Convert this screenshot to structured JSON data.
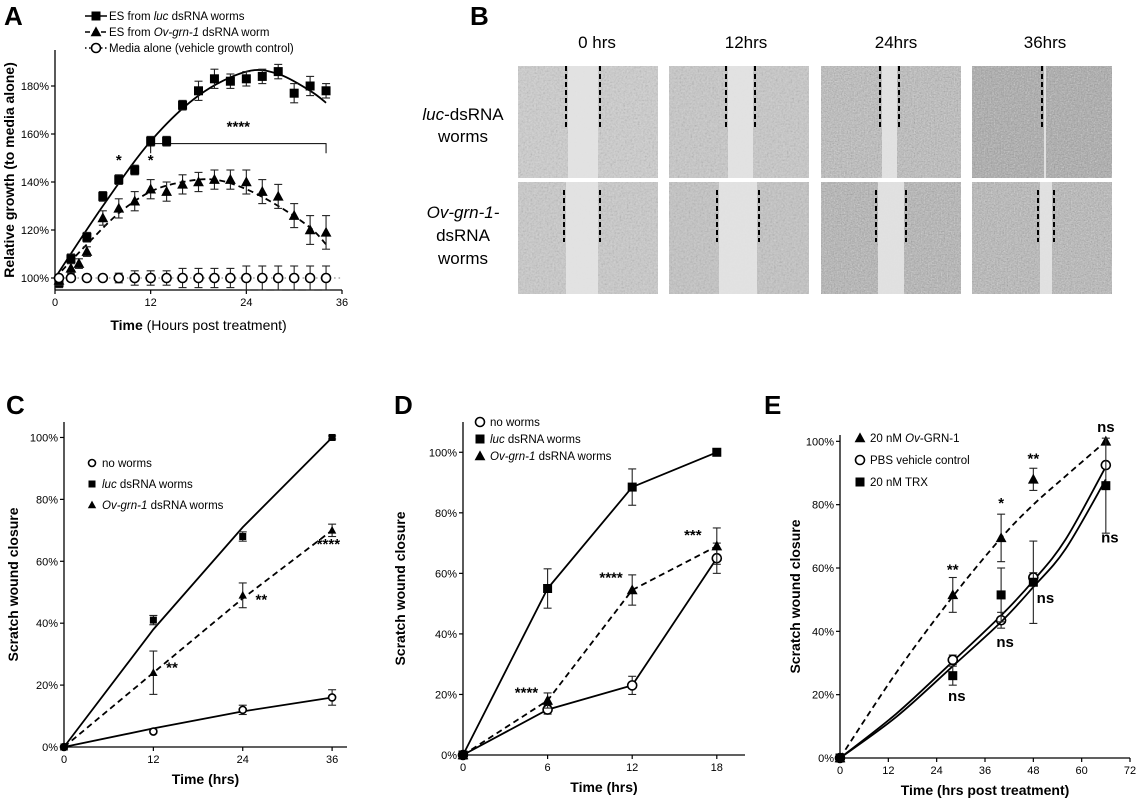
{
  "panels": {
    "A": "A",
    "B": "B",
    "C": "C",
    "D": "D",
    "E": "E"
  },
  "chart_data": [
    {
      "id": "A",
      "type": "line",
      "xlabel": "Time",
      "xlabel_suffix": "(Hours post treatment)",
      "ylabel": "Relative growth (to media alone)",
      "xlim": [
        0,
        36
      ],
      "ylim": [
        95,
        195
      ],
      "x_ticks": [
        0,
        12,
        24,
        36
      ],
      "y_ticks": [
        100,
        120,
        140,
        160,
        180
      ],
      "y_tick_labels": [
        "100%",
        "120%",
        "140%",
        "160%",
        "180%"
      ],
      "legend_position": "top",
      "series": [
        {
          "name": "ES from luc dsRNA worms",
          "name_parts": [
            "ES from ",
            "luc",
            " dsRNA worms"
          ],
          "marker": "square",
          "line": "solid",
          "x": [
            0.5,
            2,
            4,
            6,
            8,
            10,
            12,
            14,
            16,
            18,
            20,
            22,
            24,
            26,
            28,
            30,
            32,
            34
          ],
          "y": [
            98,
            108,
            117,
            134,
            141,
            145,
            157,
            157,
            172,
            178,
            183,
            182,
            183,
            184,
            186,
            177,
            180,
            178
          ],
          "err": [
            2,
            2,
            2,
            2,
            2,
            2,
            2,
            2,
            2,
            4,
            4,
            3,
            3,
            3,
            3,
            4,
            4,
            3
          ],
          "fit_x": [
            0,
            6,
            12,
            18,
            24,
            28,
            32,
            34
          ],
          "fit_y": [
            100,
            130,
            157,
            176,
            186,
            185,
            178,
            173
          ]
        },
        {
          "name": "ES from Ov-grn-1 dsRNA worm",
          "name_parts": [
            "ES from ",
            "Ov-grn-1",
            " dsRNA worm"
          ],
          "marker": "triangle",
          "line": "dashed",
          "x": [
            0.5,
            2,
            3,
            4,
            6,
            8,
            10,
            12,
            14,
            16,
            18,
            20,
            22,
            24,
            26,
            28,
            30,
            32,
            34
          ],
          "y": [
            99,
            104,
            106,
            111,
            125,
            129,
            132,
            137,
            136,
            139,
            140,
            141,
            141,
            140,
            136,
            134,
            126,
            120,
            119
          ],
          "err": [
            2,
            2,
            2,
            2,
            3,
            4,
            4,
            4,
            4,
            4,
            4,
            4,
            4,
            5,
            5,
            5,
            5,
            6,
            7
          ],
          "fit_x": [
            0,
            4,
            8,
            12,
            16,
            20,
            24,
            28,
            32,
            34
          ],
          "fit_y": [
            100,
            114,
            127,
            136,
            140,
            141,
            137,
            130,
            121,
            114
          ]
        },
        {
          "name": "Media alone (vehicle growth control)",
          "name_parts": [
            "Media alone (vehicle growth control)"
          ],
          "marker": "circle",
          "line": "dotted",
          "x": [
            0.5,
            2,
            4,
            6,
            8,
            10,
            12,
            14,
            16,
            18,
            20,
            22,
            24,
            26,
            28,
            30,
            32,
            34
          ],
          "y": [
            100,
            100,
            100,
            100,
            100,
            100,
            100,
            100,
            100,
            100,
            100,
            100,
            100,
            100,
            100,
            100,
            100,
            100
          ],
          "err": [
            1,
            1,
            1,
            1,
            2,
            3,
            3,
            3,
            4,
            4,
            4,
            4,
            5,
            5,
            5,
            5,
            5,
            5
          ],
          "fit_x": [
            0,
            36
          ],
          "fit_y": [
            100,
            100
          ]
        }
      ],
      "annotations": [
        {
          "text": "*",
          "x": 8,
          "y": 147
        },
        {
          "text": "*",
          "x": 12,
          "y": 147
        },
        {
          "text": "****",
          "x": 23,
          "y": 161
        }
      ],
      "bracket": {
        "x1": 12,
        "x2": 34,
        "y": 156,
        "tick_y": 152
      }
    },
    {
      "id": "C",
      "type": "line",
      "xlabel": "Time (hrs)",
      "ylabel": "Scratch wound closure",
      "xlim": [
        0,
        38
      ],
      "ylim": [
        0,
        105
      ],
      "x_ticks": [
        0,
        12,
        24,
        36
      ],
      "y_ticks": [
        0,
        20,
        40,
        60,
        80,
        100
      ],
      "y_tick_labels": [
        "0%",
        "20%",
        "40%",
        "60%",
        "80%",
        "100%"
      ],
      "legend_position": "top-left",
      "series": [
        {
          "name": "no worms",
          "name_parts": [
            "no worms"
          ],
          "marker": "circle",
          "line": "solid",
          "x": [
            0,
            12,
            24,
            36
          ],
          "y": [
            0,
            5,
            12,
            16
          ],
          "err": [
            0,
            0.5,
            1.5,
            2.5
          ],
          "fit_x": [
            0,
            12,
            24,
            36
          ],
          "fit_y": [
            0,
            6,
            11.5,
            16
          ]
        },
        {
          "name": "luc dsRNA worms",
          "name_parts": [
            "luc",
            " dsRNA worms"
          ],
          "marker": "square",
          "line": "solid",
          "x": [
            0,
            12,
            24,
            36
          ],
          "y": [
            0,
            41,
            68,
            100
          ],
          "err": [
            0,
            1.5,
            1.5,
            0.5
          ],
          "fit_x": [
            0,
            12,
            24,
            36
          ],
          "fit_y": [
            0,
            38,
            71,
            100
          ]
        },
        {
          "name": "Ov-grn-1 dsRNA worms",
          "name_parts": [
            "Ov-grn-1",
            " dsRNA worms"
          ],
          "marker": "triangle",
          "line": "dashed",
          "x": [
            0,
            12,
            24,
            36
          ],
          "y": [
            0,
            24,
            49,
            70
          ],
          "err": [
            0,
            7,
            4,
            2
          ],
          "fit_x": [
            0,
            12,
            24,
            36
          ],
          "fit_y": [
            0,
            24,
            48,
            70
          ]
        }
      ],
      "annotations": [
        {
          "text": "**",
          "x": 14.5,
          "y": 24
        },
        {
          "text": "**",
          "x": 26.5,
          "y": 46
        },
        {
          "text": "****",
          "x": 35.5,
          "y": 64
        }
      ]
    },
    {
      "id": "D",
      "type": "line",
      "xlabel": "Time (hrs)",
      "ylabel": "Scratch wound closure",
      "xlim": [
        0,
        20
      ],
      "ylim": [
        0,
        110
      ],
      "x_ticks": [
        0,
        6,
        12,
        18
      ],
      "y_ticks": [
        0,
        20,
        40,
        60,
        80,
        100
      ],
      "y_tick_labels": [
        "0%",
        "20%",
        "40%",
        "60%",
        "80%",
        "100%"
      ],
      "legend_position": "top-left",
      "series": [
        {
          "name": "no worms",
          "name_parts": [
            "no worms"
          ],
          "marker": "circle",
          "line": "solid",
          "x": [
            0,
            6,
            12,
            18
          ],
          "y": [
            0,
            15,
            23,
            65
          ],
          "err": [
            0,
            1.5,
            3,
            5
          ],
          "fit_x": [
            0,
            6,
            12,
            18
          ],
          "fit_y": [
            0,
            15,
            23,
            65
          ]
        },
        {
          "name": "luc dsRNA worms",
          "name_parts": [
            "luc",
            " dsRNA worms"
          ],
          "marker": "square",
          "line": "solid",
          "x": [
            0,
            6,
            12,
            18
          ],
          "y": [
            0,
            55,
            88.5,
            100
          ],
          "err": [
            0,
            6.5,
            6,
            0.5
          ],
          "fit_x": [
            0,
            6,
            12,
            18
          ],
          "fit_y": [
            0,
            55,
            88.5,
            100
          ]
        },
        {
          "name": "Ov-grn-1 dsRNA worms",
          "name_parts": [
            "Ov-grn-1",
            " dsRNA worms"
          ],
          "marker": "triangle",
          "line": "dashed",
          "x": [
            0,
            6,
            12,
            18
          ],
          "y": [
            0,
            18,
            54.5,
            69
          ],
          "err": [
            0,
            2.5,
            5,
            6
          ],
          "fit_x": [
            0,
            6,
            12,
            18
          ],
          "fit_y": [
            0,
            18,
            54.5,
            69
          ]
        }
      ],
      "annotations": [
        {
          "text": "****",
          "x": 4.5,
          "y": 19
        },
        {
          "text": "****",
          "x": 10.5,
          "y": 57
        },
        {
          "text": "***",
          "x": 16.3,
          "y": 71
        }
      ]
    },
    {
      "id": "E",
      "type": "line",
      "xlabel": "Time (hrs post treatment)",
      "ylabel": "Scratch wound closure",
      "xlim": [
        0,
        72
      ],
      "ylim": [
        0,
        102
      ],
      "x_ticks": [
        0,
        12,
        24,
        36,
        48,
        60,
        72
      ],
      "y_ticks": [
        0,
        20,
        40,
        60,
        80,
        100
      ],
      "y_tick_labels": [
        "0%",
        "20%",
        "40%",
        "60%",
        "80%",
        "100%"
      ],
      "legend_position": "top-left",
      "series": [
        {
          "name": "20 nM Ov-GRN-1",
          "name_parts": [
            "20 nM ",
            "Ov",
            "-GRN-1"
          ],
          "marker": "triangle",
          "line": "dashed",
          "x": [
            0,
            28,
            40,
            48,
            66
          ],
          "y": [
            0,
            51.5,
            69.5,
            88,
            100
          ],
          "err": [
            0,
            5.5,
            7.5,
            3.5,
            0
          ],
          "fit_x": [
            0,
            14,
            28,
            40,
            48,
            56,
            66
          ],
          "fit_y": [
            0,
            27,
            51,
            69.5,
            80,
            89,
            100
          ]
        },
        {
          "name": "PBS vehicle control",
          "name_parts": [
            "PBS vehicle control"
          ],
          "marker": "circle",
          "line": "solid",
          "x": [
            0,
            28,
            40,
            48,
            66
          ],
          "y": [
            0,
            31,
            43.5,
            57,
            92.5
          ],
          "err": [
            0,
            1.5,
            2.5,
            1.5,
            0
          ],
          "fit_x": [
            0,
            14,
            28,
            40,
            48,
            56,
            66
          ],
          "fit_y": [
            0,
            14,
            30.5,
            45,
            56,
            69,
            92
          ]
        },
        {
          "name": "20 nM TRX",
          "name_parts": [
            "20 nM TRX"
          ],
          "marker": "square",
          "line": "solid",
          "x": [
            0,
            28,
            40,
            48,
            66
          ],
          "y": [
            0,
            26,
            51.5,
            55.5,
            86
          ],
          "err": [
            0,
            3,
            8.5,
            13,
            15
          ],
          "fit_x": [
            0,
            14,
            28,
            40,
            48,
            56,
            66
          ],
          "fit_y": [
            0,
            13,
            29,
            43,
            54,
            66,
            88
          ]
        }
      ],
      "annotations": [
        {
          "text": "**",
          "x": 28,
          "y": 58
        },
        {
          "text": "*",
          "x": 40,
          "y": 79
        },
        {
          "text": "**",
          "x": 48,
          "y": 93
        },
        {
          "text": "ns",
          "x": 66,
          "y": 103
        },
        {
          "text": "ns",
          "x": 29,
          "y": 18
        },
        {
          "text": "ns",
          "x": 41,
          "y": 35
        },
        {
          "text": "ns",
          "x": 51,
          "y": 49
        },
        {
          "text": "ns",
          "x": 67,
          "y": 68
        }
      ]
    }
  ],
  "micrographs": {
    "columns": [
      "0 hrs",
      "12hrs",
      "24hrs",
      "36hrs"
    ],
    "rows": [
      {
        "lines": [
          [
            "luc",
            "-dsRNA"
          ],
          [
            "worms"
          ]
        ],
        "italic_first": true
      },
      {
        "lines": [
          [
            "Ov-grn-1-"
          ],
          [
            "dsRNA"
          ],
          [
            "worms"
          ]
        ],
        "italic_first": true
      }
    ]
  }
}
